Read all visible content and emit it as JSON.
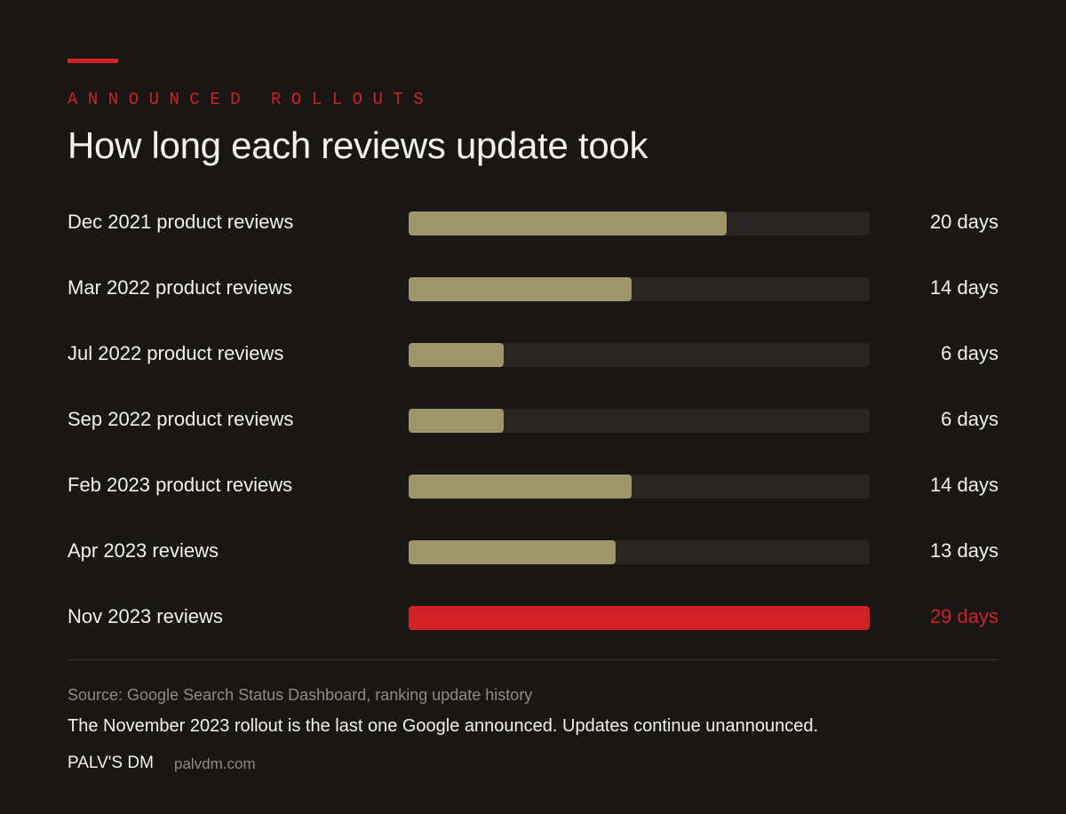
{
  "header": {
    "kicker": "ANNOUNCED ROLLOUTS",
    "title": "How long each reviews update took"
  },
  "chart_data": {
    "type": "bar",
    "orientation": "horizontal",
    "categories": [
      "Dec 2021 product reviews",
      "Mar 2022 product reviews",
      "Jul 2022 product reviews",
      "Sep 2022 product reviews",
      "Feb 2023 product reviews",
      "Apr 2023 reviews",
      "Nov 2023 reviews"
    ],
    "values": [
      20,
      14,
      6,
      6,
      14,
      13,
      29
    ],
    "value_labels": [
      "20 days",
      "14 days",
      "6 days",
      "6 days",
      "14 days",
      "13 days",
      "29 days"
    ],
    "xlim": [
      0,
      29
    ],
    "highlight_index": 6,
    "colors": {
      "bar": "#9e956a",
      "track": "#282523",
      "highlight": "#d22027",
      "label": "#f2f0ec"
    },
    "grid": false,
    "title": "How long each reviews update took"
  },
  "footer": {
    "source": "Source: Google Search Status Dashboard, ranking update history",
    "note": "The November 2023 rollout is the last one Google announced. Updates continue unannounced.",
    "brand": "PALV'S DM",
    "site": "palvdm.com"
  }
}
